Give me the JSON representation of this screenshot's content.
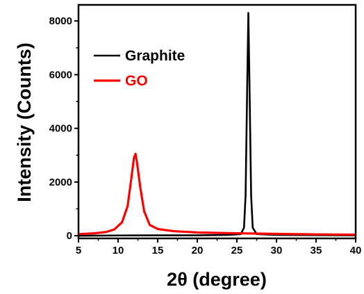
{
  "chart_data": {
    "type": "line",
    "title": "",
    "xlabel": "2θ (degree)",
    "ylabel": "Intensity (Counts)",
    "xlim": [
      5,
      40
    ],
    "ylim": [
      -100,
      8600
    ],
    "xticks": [
      5,
      10,
      15,
      20,
      25,
      30,
      35,
      40
    ],
    "yticks": [
      0,
      2000,
      4000,
      6000,
      8000
    ],
    "grid": false,
    "legend_position": "top-left",
    "series": [
      {
        "name": "Graphite",
        "color": "#000000",
        "x": [
          5,
          10,
          15,
          20,
          24,
          25.5,
          25.9,
          26.1,
          26.3,
          26.45,
          26.6,
          26.8,
          27.0,
          27.5,
          29,
          30,
          35,
          40
        ],
        "y": [
          0,
          10,
          15,
          15,
          30,
          60,
          300,
          1500,
          5500,
          8300,
          5500,
          1500,
          300,
          60,
          40,
          30,
          20,
          15
        ]
      },
      {
        "name": "GO",
        "color": "#ff0000",
        "x": [
          5,
          7,
          8.5,
          9.5,
          10.5,
          11.2,
          11.7,
          12.0,
          12.2,
          12.4,
          12.8,
          13.3,
          14.0,
          15,
          17,
          20,
          25,
          30,
          35,
          40
        ],
        "y": [
          60,
          90,
          140,
          230,
          500,
          1100,
          2200,
          2900,
          3050,
          2700,
          1800,
          900,
          400,
          250,
          170,
          120,
          90,
          70,
          50,
          40
        ]
      }
    ]
  }
}
